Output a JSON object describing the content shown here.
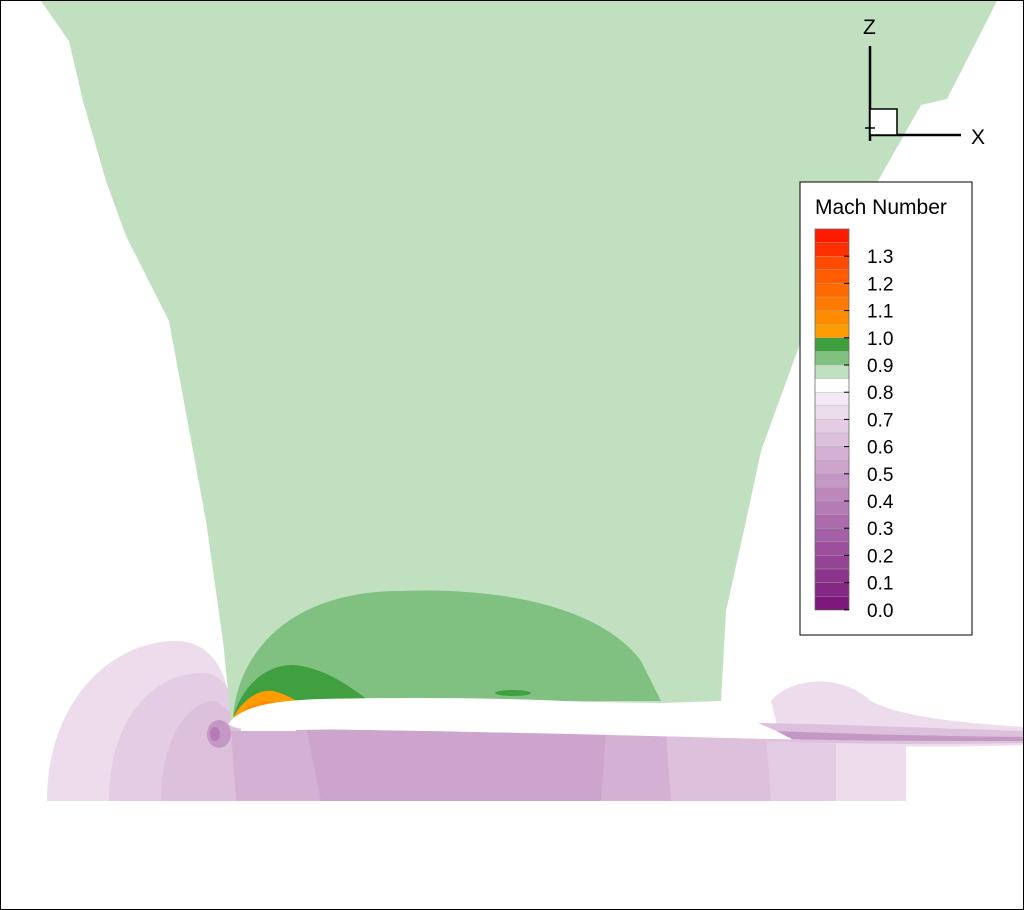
{
  "chart_data": {
    "type": "heatmap",
    "title": "",
    "legend": {
      "title": "Mach Number",
      "placement": "right",
      "tick_labels": [
        "1.3",
        "1.2",
        "1.1",
        "1.0",
        "0.9",
        "0.8",
        "0.7",
        "0.6",
        "0.5",
        "0.4",
        "0.3",
        "0.2",
        "0.1",
        "0.0"
      ],
      "levels": [
        1.4,
        1.35,
        1.3,
        1.25,
        1.2,
        1.15,
        1.1,
        1.05,
        1.0,
        0.95,
        0.9,
        0.85,
        0.8,
        0.75,
        0.7,
        0.65,
        0.6,
        0.55,
        0.5,
        0.45,
        0.4,
        0.35,
        0.3,
        0.25,
        0.2,
        0.15,
        0.1,
        0.05
      ],
      "colors": [
        "#ff1a00",
        "#ff3000",
        "#ff4a00",
        "#ff5c00",
        "#ff6a00",
        "#ff7a00",
        "#ff8c00",
        "#ff9c00",
        "#40a040",
        "#80c080",
        "#c0e0c0",
        "#ffffff",
        "#f4e8f4",
        "#ecdcec",
        "#e4cce4",
        "#dcc0dc",
        "#d4b0d4",
        "#cca4cc",
        "#c498c4",
        "#bc88bc",
        "#b47cb4",
        "#ac6cac",
        "#a460a4",
        "#9c509c",
        "#944494",
        "#8c348c",
        "#842884",
        "#7c187c"
      ]
    },
    "axes_triad": {
      "vertical": "Z",
      "horizontal": "X",
      "normal": "Y"
    }
  }
}
